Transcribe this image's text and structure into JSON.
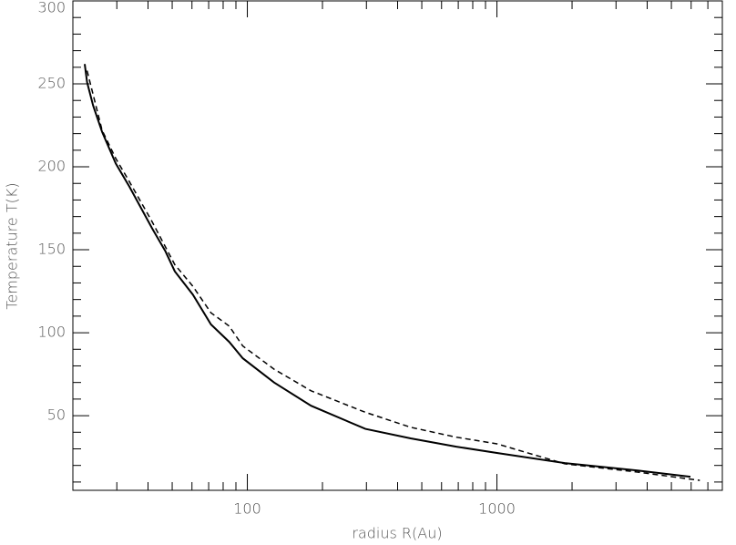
{
  "chart_data": {
    "type": "line",
    "x_label": "radius R(Au)",
    "y_label": "Temperature T(K)",
    "xlog": true,
    "xlim": [
      20,
      8000
    ],
    "ylim": [
      5,
      300
    ],
    "xticks": [
      100,
      1000
    ],
    "xminorticks": [
      20,
      30,
      40,
      50,
      60,
      70,
      80,
      90,
      200,
      300,
      400,
      500,
      600,
      700,
      800,
      900,
      2000,
      3000,
      4000,
      5000,
      6000,
      7000,
      8000
    ],
    "yticks": [
      50,
      100,
      150,
      200,
      250,
      300
    ],
    "yminorticks": [
      10,
      20,
      30,
      40,
      60,
      70,
      80,
      90,
      110,
      120,
      130,
      140,
      160,
      170,
      180,
      190,
      210,
      220,
      230,
      240,
      260,
      270,
      280,
      290
    ],
    "series": [
      {
        "color": "#000000",
        "dashed": false,
        "x": [
          22.3,
          22.8,
          24.1,
          26.2,
          29.7,
          33.7,
          41.5,
          47,
          51.2,
          60.5,
          71.5,
          84.6,
          95.9,
          128,
          180,
          297,
          451,
          687,
          1000,
          1870,
          3660,
          5960
        ],
        "values": [
          262,
          251,
          237,
          221,
          202,
          188,
          163,
          149,
          137,
          123,
          105,
          94.5,
          84.6,
          70,
          56,
          42,
          36.3,
          31.3,
          27.5,
          21.4,
          17,
          13.2
        ]
      },
      {
        "color": "#000000",
        "dashed": true,
        "x": [
          22.8,
          26.2,
          29.7,
          33.7,
          41.5,
          51.2,
          60.5,
          71.5,
          84.6,
          95.9,
          128,
          180,
          297,
          451,
          687,
          1000,
          1870,
          3660,
          6500
        ],
        "values": [
          258,
          222,
          205,
          191,
          167,
          141,
          128,
          112,
          104,
          92,
          78,
          65,
          52,
          43,
          37,
          33,
          21,
          16,
          11
        ]
      }
    ]
  }
}
